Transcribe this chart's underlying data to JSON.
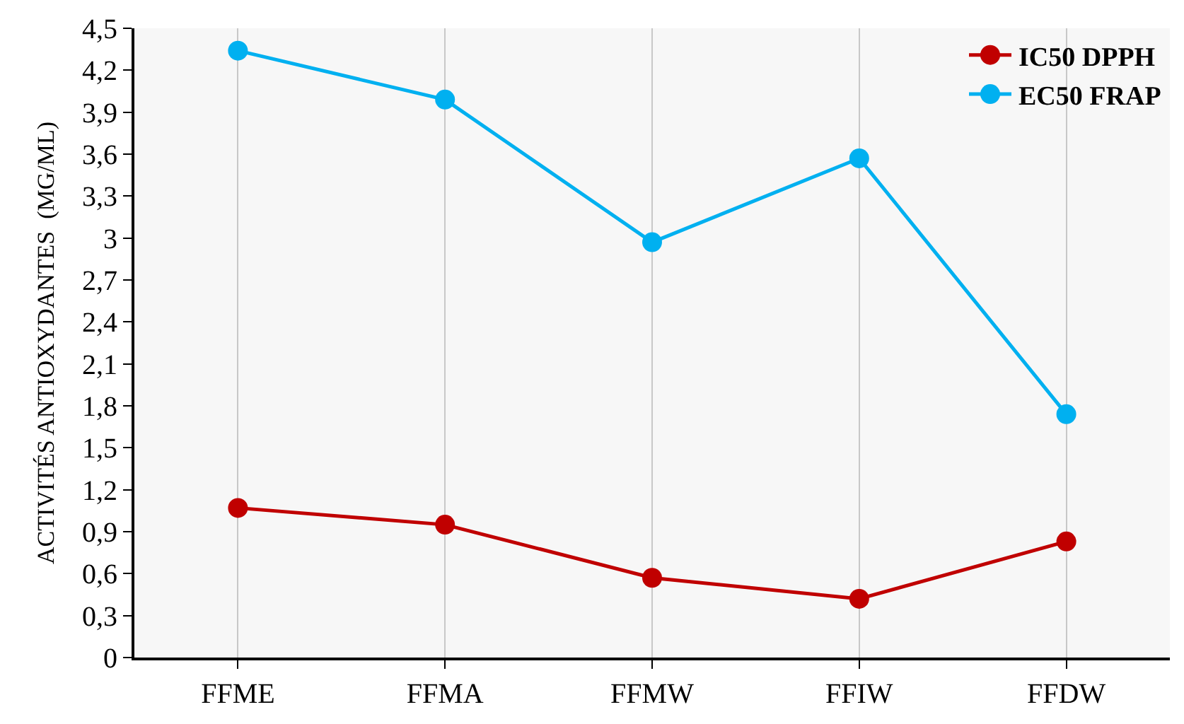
{
  "chart_data": {
    "type": "line",
    "ylabel": "ACTIVITÉS ANTIOXYDANTES  (MG/ML)",
    "categories": [
      "FFME",
      "FFMA",
      "FFMW",
      "FFIW",
      "FFDW"
    ],
    "series": [
      {
        "name": "IC50 DPPH",
        "color": "#c00000",
        "values": [
          1.07,
          0.95,
          0.57,
          0.42,
          0.83
        ]
      },
      {
        "name": "EC50 FRAP",
        "color": "#00b0f0",
        "values": [
          4.34,
          3.99,
          2.97,
          3.57,
          1.74
        ]
      }
    ],
    "ylim": [
      0,
      4.5
    ],
    "yticks": [
      0,
      {
        "value": 0.3,
        "label": "0,3"
      },
      {
        "value": 0.6,
        "label": "0,6"
      },
      {
        "value": 0.9,
        "label": "0,9"
      },
      {
        "value": 1.2,
        "label": "1,2"
      },
      {
        "value": 1.5,
        "label": "1,5"
      },
      {
        "value": 1.8,
        "label": "1,8"
      },
      {
        "value": 2.1,
        "label": "2,1"
      },
      {
        "value": 2.4,
        "label": "2,4"
      },
      {
        "value": 2.7,
        "label": "2,7"
      },
      3,
      {
        "value": 3.3,
        "label": "3,3"
      },
      {
        "value": 3.6,
        "label": "3,6"
      },
      {
        "value": 3.9,
        "label": "3,9"
      },
      {
        "value": 4.2,
        "label": "4,2"
      },
      {
        "value": 4.5,
        "label": "4,5"
      }
    ],
    "grid": "x",
    "legend": "top right",
    "marker": "circle",
    "line_style": "solid"
  }
}
